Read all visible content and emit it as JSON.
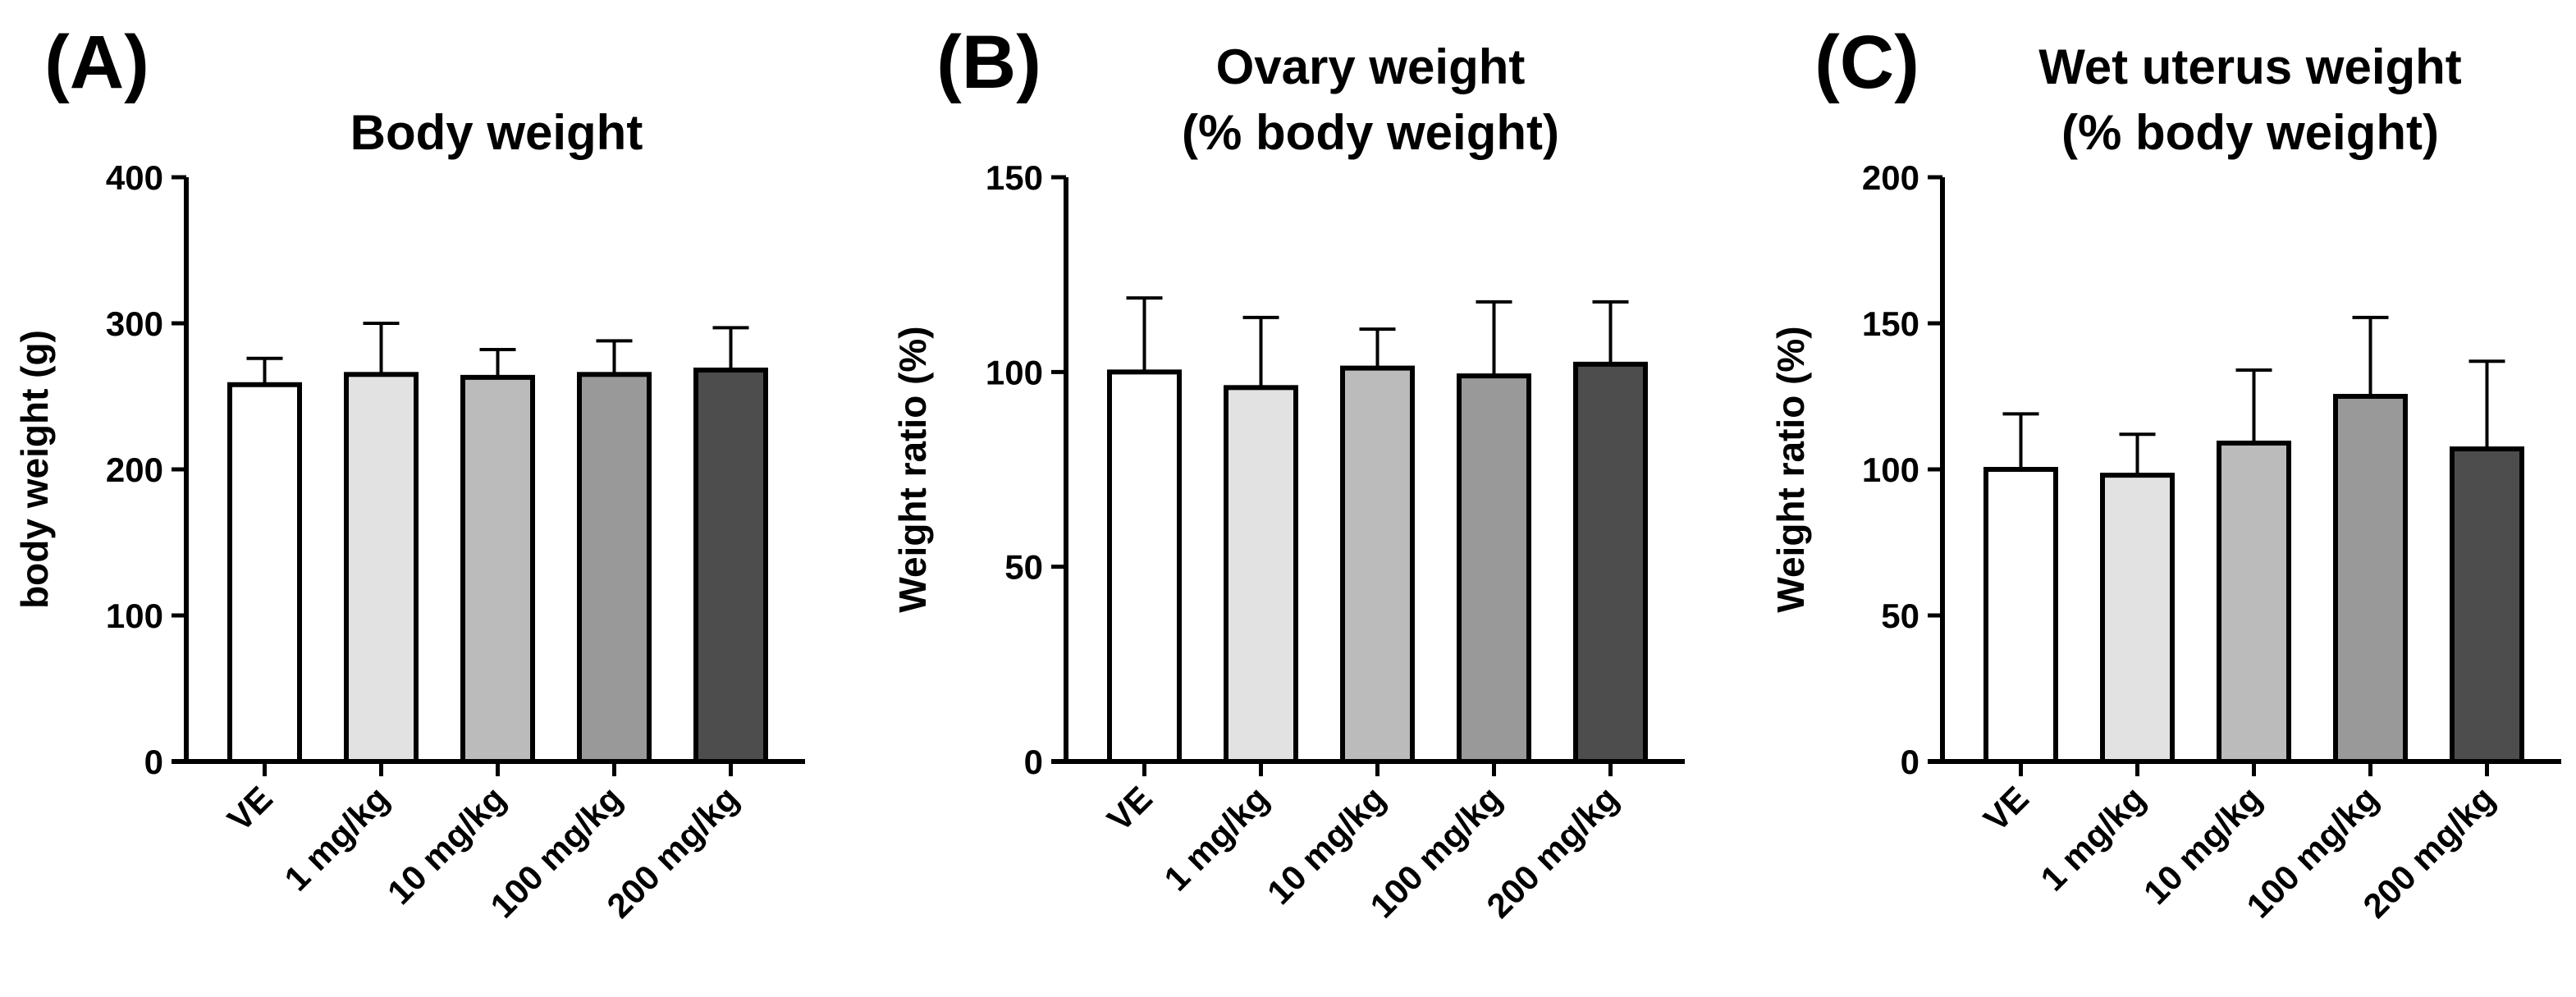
{
  "chart_data": [
    {
      "type": "bar",
      "panel_label": "(A)",
      "title": [
        "Body weight"
      ],
      "xlabel": "",
      "ylabel": "body weight (g)",
      "ylim": [
        0,
        400
      ],
      "yticks": [
        0,
        100,
        200,
        300,
        400
      ],
      "categories": [
        "VE",
        "1 mg/kg",
        "10 mg/kg",
        "100 mg/kg",
        "200 mg/kg"
      ],
      "values": [
        258,
        265,
        263,
        265,
        268
      ],
      "error_upper": [
        276,
        300,
        282,
        288,
        297
      ],
      "bar_colors": [
        "#ffffff",
        "#e2e2e2",
        "#bbbbbb",
        "#999999",
        "#4d4d4d"
      ]
    },
    {
      "type": "bar",
      "panel_label": "(B)",
      "title": [
        "Ovary weight",
        "(% body weight)"
      ],
      "xlabel": "",
      "ylabel": "Weight ratio (%)",
      "ylim": [
        0,
        150
      ],
      "yticks": [
        0,
        50,
        100,
        150
      ],
      "categories": [
        "VE",
        "1 mg/kg",
        "10 mg/kg",
        "100 mg/kg",
        "200 mg/kg"
      ],
      "values": [
        100,
        96,
        101,
        99,
        102
      ],
      "error_upper": [
        119,
        114,
        111,
        118,
        118
      ],
      "bar_colors": [
        "#ffffff",
        "#e2e2e2",
        "#bbbbbb",
        "#999999",
        "#4d4d4d"
      ]
    },
    {
      "type": "bar",
      "panel_label": "(C)",
      "title": [
        "Wet uterus weight",
        "(% body weight)"
      ],
      "xlabel": "",
      "ylabel": "Weight ratio (%)",
      "ylim": [
        0,
        200
      ],
      "yticks": [
        0,
        50,
        100,
        150,
        200
      ],
      "categories": [
        "VE",
        "1 mg/kg",
        "10 mg/kg",
        "100 mg/kg",
        "200 mg/kg"
      ],
      "values": [
        100,
        98,
        109,
        125,
        107
      ],
      "error_upper": [
        119,
        112,
        134,
        152,
        137
      ],
      "bar_colors": [
        "#ffffff",
        "#e2e2e2",
        "#bbbbbb",
        "#999999",
        "#4d4d4d"
      ]
    }
  ]
}
